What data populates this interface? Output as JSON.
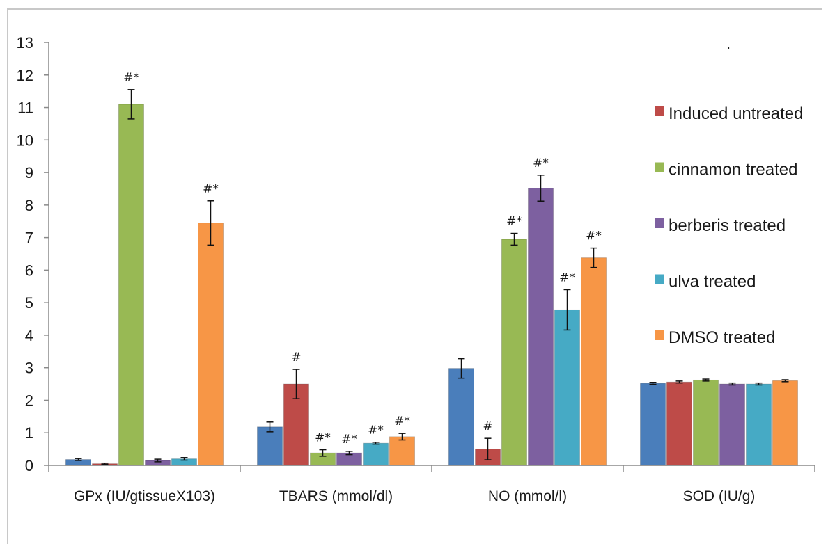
{
  "chart_data": {
    "type": "bar",
    "title": "",
    "xlabel": "",
    "ylabel": "",
    "ylim": [
      0,
      13
    ],
    "yticks": [
      0,
      1,
      2,
      3,
      4,
      5,
      6,
      7,
      8,
      9,
      10,
      11,
      12,
      13
    ],
    "grid": false,
    "legend_position": "right",
    "categories": [
      "GPx (IU/gtissueX103)",
      "TBARS (mmol/dl)",
      "NO (mmol/l)",
      "SOD (IU/g)"
    ],
    "series": [
      {
        "name": "",
        "color": "#4a7ebb",
        "values": [
          0.18,
          1.18,
          2.98,
          2.52
        ],
        "errors": [
          0.03,
          0.15,
          0.3,
          0.03
        ],
        "sig": [
          "",
          "",
          "",
          ""
        ]
      },
      {
        "name": "Induced untreated",
        "color": "#be4b48",
        "values": [
          0.05,
          2.5,
          0.5,
          2.56
        ],
        "errors": [
          0.02,
          0.45,
          0.33,
          0.03
        ],
        "sig": [
          "",
          "#",
          "#",
          ""
        ]
      },
      {
        "name": "cinnamon treated",
        "color": "#98b954",
        "values": [
          11.1,
          0.38,
          6.95,
          2.62
        ],
        "errors": [
          0.45,
          0.1,
          0.18,
          0.03
        ],
        "sig": [
          "#*",
          "#*",
          "#*",
          ""
        ]
      },
      {
        "name": "berberis treated",
        "color": "#7d60a0",
        "values": [
          0.15,
          0.38,
          8.52,
          2.5
        ],
        "errors": [
          0.04,
          0.05,
          0.4,
          0.03
        ],
        "sig": [
          "",
          "#*",
          "#*",
          ""
        ]
      },
      {
        "name": "ulva treated",
        "color": "#46aac5",
        "values": [
          0.2,
          0.68,
          4.78,
          2.5
        ],
        "errors": [
          0.04,
          0.03,
          0.62,
          0.03
        ],
        "sig": [
          "",
          "#*",
          "#*",
          ""
        ]
      },
      {
        "name": "DMSO treated",
        "color": "#f79646",
        "values": [
          7.45,
          0.88,
          6.38,
          2.6
        ],
        "errors": [
          0.68,
          0.1,
          0.3,
          0.03
        ],
        "sig": [
          "#*",
          "#*",
          "#*",
          ""
        ]
      }
    ]
  },
  "annotations": {
    "stray_mark": "."
  }
}
